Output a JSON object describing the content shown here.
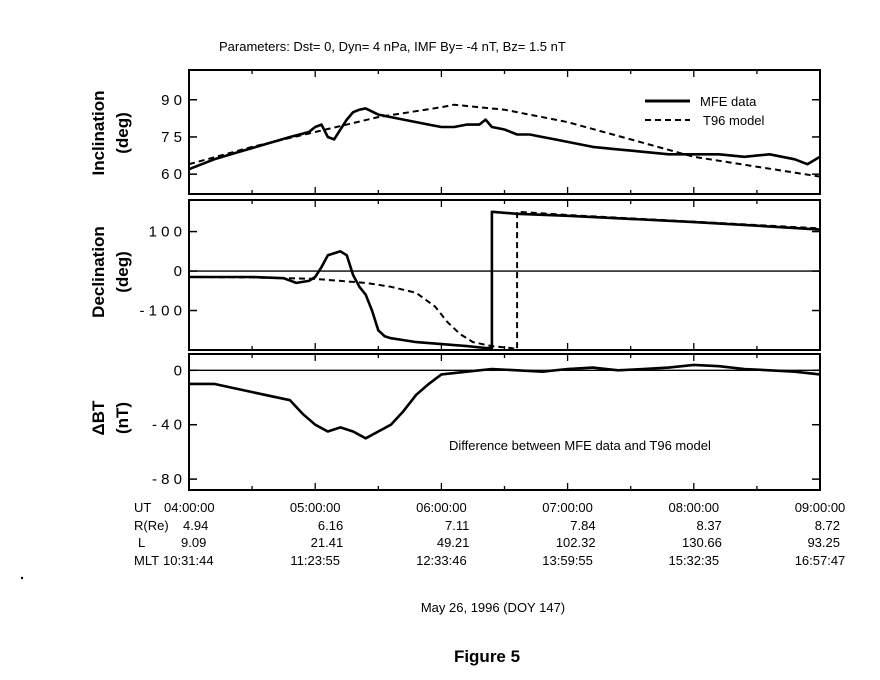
{
  "parameters_text": "Parameters:  Dst= 0, Dyn= 4 nPa, IMF By= -4 nT, Bz= 1.5 nT",
  "date_label": "May 26, 1996 (DOY 147)",
  "figure_caption": "Figure 5",
  "legend": {
    "mfe": "MFE data",
    "t96": "T96 model"
  },
  "difference_annotation": "Difference between MFE data and T96 model",
  "row_labels": {
    "ut": "UT",
    "r": "R(Re)",
    "l": "L",
    "mlt": "MLT"
  },
  "ephemeris": [
    {
      "ut": "04:00:00",
      "r": "4.94",
      "l": "9.09",
      "mlt": "10:31:44"
    },
    {
      "ut": "05:00:00",
      "r": "6.16",
      "l": "21.41",
      "mlt": "11:23:55"
    },
    {
      "ut": "06:00:00",
      "r": "7.11",
      "l": "49.21",
      "mlt": "12:33:46"
    },
    {
      "ut": "07:00:00",
      "r": "7.84",
      "l": "102.32",
      "mlt": "13:59:55"
    },
    {
      "ut": "08:00:00",
      "r": "8.37",
      "l": "130.66",
      "mlt": "15:32:35"
    },
    {
      "ut": "09:00:00",
      "r": "8.72",
      "l": "93.25",
      "mlt": "16:57:47"
    }
  ],
  "chart_data": [
    {
      "type": "line",
      "ylabel": "Inclination\n(deg)",
      "ylim": [
        52,
        102
      ],
      "yticks": [
        60,
        75,
        90
      ],
      "yticklabels": [
        "6 0",
        "7 5",
        "9 0"
      ],
      "x_range_hours": [
        4.0,
        9.0
      ],
      "series": [
        {
          "name": "MFE data",
          "style": "solid",
          "x": [
            4.0,
            4.2,
            4.4,
            4.6,
            4.8,
            4.95,
            5.0,
            5.05,
            5.1,
            5.15,
            5.2,
            5.25,
            5.3,
            5.35,
            5.4,
            5.5,
            5.6,
            5.7,
            5.8,
            5.9,
            6.0,
            6.1,
            6.2,
            6.3,
            6.35,
            6.4,
            6.5,
            6.6,
            6.7,
            6.8,
            6.9,
            7.0,
            7.2,
            7.4,
            7.6,
            7.8,
            8.0,
            8.2,
            8.4,
            8.6,
            8.8,
            8.9,
            9.0
          ],
          "y": [
            62,
            66,
            69,
            72,
            75,
            77,
            79,
            80,
            75,
            74,
            78,
            82,
            85,
            86,
            86.5,
            84,
            83,
            82,
            81,
            80,
            79,
            79,
            80,
            80,
            82,
            79,
            78,
            76,
            76,
            75,
            74,
            73,
            71,
            70,
            69,
            68,
            68,
            68,
            67,
            68,
            66,
            64,
            67
          ]
        },
        {
          "name": "T96 model",
          "style": "dashed",
          "x": [
            4.0,
            4.5,
            5.0,
            5.5,
            6.0,
            6.1,
            6.5,
            7.0,
            7.5,
            8.0,
            8.5,
            9.0
          ],
          "y": [
            64,
            71,
            77,
            83,
            87,
            88,
            86,
            81,
            74,
            67,
            63,
            59
          ]
        }
      ]
    },
    {
      "type": "line",
      "ylabel": "Declination\n(deg)",
      "ylim": [
        -200,
        180
      ],
      "yticks": [
        -100,
        0,
        100
      ],
      "yticklabels": [
        "- 1 0 0",
        "0",
        "1 0 0"
      ],
      "x_range_hours": [
        4.0,
        9.0
      ],
      "series": [
        {
          "name": "MFE data",
          "style": "solid",
          "x": [
            4.0,
            4.5,
            4.75,
            4.85,
            4.95,
            5.0,
            5.05,
            5.1,
            5.2,
            5.25,
            5.3,
            5.35,
            5.4,
            5.45,
            5.5,
            5.55,
            5.6,
            5.7,
            5.8,
            6.0,
            6.2,
            6.35,
            6.4,
            6.4,
            6.6,
            7.0,
            7.5,
            8.0,
            8.5,
            9.0
          ],
          "y": [
            -15,
            -15,
            -18,
            -30,
            -25,
            -15,
            10,
            40,
            50,
            40,
            -10,
            -40,
            -60,
            -100,
            -150,
            -165,
            -170,
            -175,
            -180,
            -185,
            -190,
            -195,
            -195,
            150,
            145,
            140,
            132,
            124,
            115,
            105
          ]
        },
        {
          "name": "T96 model",
          "style": "dashed",
          "x": [
            4.0,
            4.5,
            5.0,
            5.2,
            5.4,
            5.6,
            5.8,
            5.95,
            6.05,
            6.15,
            6.25,
            6.4,
            6.55,
            6.6,
            6.6,
            7.0,
            8.0,
            9.0
          ],
          "y": [
            -15,
            -16,
            -20,
            -25,
            -30,
            -40,
            -55,
            -90,
            -130,
            -160,
            -180,
            -190,
            -195,
            -198,
            150,
            142,
            125,
            108
          ]
        }
      ]
    },
    {
      "type": "line",
      "ylabel": "ΔBT\n(nT)",
      "ylim": [
        -88,
        12
      ],
      "yticks": [
        -80,
        -40,
        0
      ],
      "yticklabels": [
        "- 8 0",
        "- 4 0",
        "0"
      ],
      "x_range_hours": [
        4.0,
        9.0
      ],
      "series": [
        {
          "name": "Difference",
          "style": "solid",
          "x": [
            4.0,
            4.2,
            4.4,
            4.6,
            4.8,
            4.9,
            5.0,
            5.1,
            5.2,
            5.3,
            5.4,
            5.5,
            5.6,
            5.7,
            5.8,
            5.9,
            6.0,
            6.2,
            6.4,
            6.6,
            6.8,
            7.0,
            7.2,
            7.4,
            7.6,
            7.8,
            8.0,
            8.2,
            8.4,
            8.6,
            8.8,
            9.0
          ],
          "y": [
            -10,
            -10,
            -14,
            -18,
            -22,
            -32,
            -40,
            -45,
            -42,
            -45,
            -50,
            -45,
            -40,
            -30,
            -18,
            -10,
            -3,
            -1,
            1,
            0,
            -1,
            1,
            2,
            0,
            1,
            2,
            4,
            3,
            1,
            0,
            -1,
            -3
          ]
        }
      ]
    }
  ]
}
